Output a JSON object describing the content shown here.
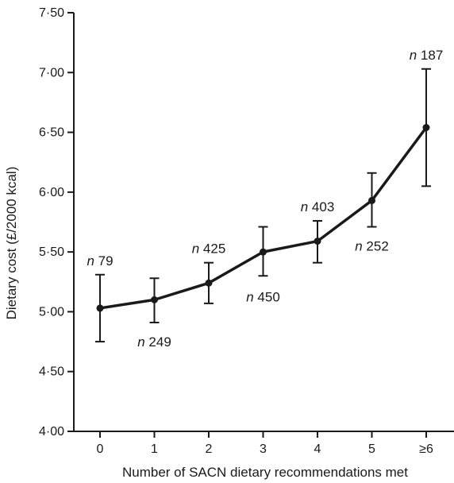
{
  "chart_data": {
    "type": "line",
    "title": "",
    "xlabel": "Number of SACN dietary recommendations met",
    "ylabel": "Dietary cost (£/2000 kcal)",
    "categories": [
      "0",
      "1",
      "2",
      "3",
      "4",
      "5",
      "≥6"
    ],
    "y_ticks": [
      "4·00",
      "4·50",
      "5·00",
      "5·50",
      "6·00",
      "6·50",
      "7·00",
      "7·50"
    ],
    "y_tick_values": [
      4.0,
      4.5,
      5.0,
      5.5,
      6.0,
      6.5,
      7.0,
      7.5
    ],
    "ylim": [
      4.0,
      7.5
    ],
    "grid": false,
    "legend": "none",
    "series": [
      {
        "values": [
          5.03,
          5.1,
          5.24,
          5.5,
          5.59,
          5.93,
          6.54
        ],
        "error_low": [
          4.75,
          4.91,
          5.07,
          5.3,
          5.41,
          5.71,
          6.05
        ],
        "error_high": [
          5.31,
          5.28,
          5.41,
          5.71,
          5.76,
          6.16,
          7.03
        ]
      }
    ],
    "annotations": [
      {
        "category": "0",
        "prefix": "n",
        "value": "79",
        "position": "above"
      },
      {
        "category": "1",
        "prefix": "n",
        "value": "249",
        "position": "below"
      },
      {
        "category": "2",
        "prefix": "n",
        "value": "425",
        "position": "above"
      },
      {
        "category": "3",
        "prefix": "n",
        "value": "450",
        "position": "below"
      },
      {
        "category": "4",
        "prefix": "n",
        "value": "403",
        "position": "above"
      },
      {
        "category": "5",
        "prefix": "n",
        "value": "252",
        "position": "below"
      },
      {
        "category": "≥6",
        "prefix": "n",
        "value": "187",
        "position": "above"
      }
    ],
    "colors": {
      "line": "#1a1a1a",
      "marker": "#1a1a1a",
      "axis": "#1a1a1a"
    }
  }
}
